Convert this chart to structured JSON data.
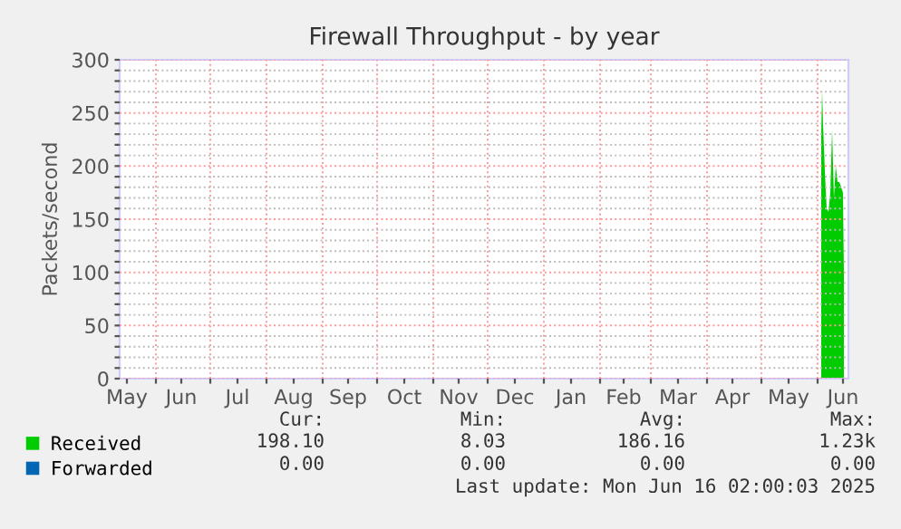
{
  "chart_data": {
    "type": "area",
    "title": "Firewall Throughput - by year",
    "ylabel": "Packets/second",
    "x": [
      "2025-06-03",
      "2025-06-03T12:00",
      "2025-06-04",
      "2025-06-05",
      "2025-06-06",
      "2025-06-07",
      "2025-06-08",
      "2025-06-09",
      "2025-06-10",
      "2025-06-11",
      "2025-06-12",
      "2025-06-13",
      "2025-06-14",
      "2025-06-15",
      "2025-06-15T12:00"
    ],
    "series": [
      {
        "name": "Received",
        "color": "#00cc00",
        "values": [
          230,
          271,
          240,
          195,
          160,
          157,
          175,
          234,
          170,
          200,
          185,
          185,
          180,
          175,
          100
        ]
      },
      {
        "name": "Forwarded",
        "color": "#0066b3",
        "values": [
          null,
          null,
          null,
          null,
          null,
          null,
          null,
          null,
          null,
          null,
          null,
          null,
          null,
          null,
          null
        ]
      }
    ],
    "xlim": [
      "2024-05-12",
      "2025-06-18"
    ],
    "xticks": [
      {
        "value": "2024-05-16",
        "label": "May"
      },
      {
        "value": "2024-06-01",
        "label": null
      },
      {
        "value": "2024-06-15",
        "label": "Jun"
      },
      {
        "value": "2024-07-01",
        "label": null
      },
      {
        "value": "2024-07-16",
        "label": "Jul"
      },
      {
        "value": "2024-08-01",
        "label": null
      },
      {
        "value": "2024-08-16",
        "label": "Aug"
      },
      {
        "value": "2024-09-01",
        "label": null
      },
      {
        "value": "2024-09-15",
        "label": "Sep"
      },
      {
        "value": "2024-10-01",
        "label": null
      },
      {
        "value": "2024-10-16",
        "label": "Oct"
      },
      {
        "value": "2024-11-01",
        "label": null
      },
      {
        "value": "2024-11-15",
        "label": "Nov"
      },
      {
        "value": "2024-12-01",
        "label": null
      },
      {
        "value": "2024-12-16",
        "label": "Dec"
      },
      {
        "value": "2025-01-01",
        "label": null
      },
      {
        "value": "2025-01-16",
        "label": "Jan"
      },
      {
        "value": "2025-02-01",
        "label": null
      },
      {
        "value": "2025-02-14",
        "label": "Feb"
      },
      {
        "value": "2025-03-01",
        "label": null
      },
      {
        "value": "2025-03-16",
        "label": "Mar"
      },
      {
        "value": "2025-04-01",
        "label": null
      },
      {
        "value": "2025-04-15",
        "label": "Apr"
      },
      {
        "value": "2025-05-01",
        "label": null
      },
      {
        "value": "2025-05-16",
        "label": "May"
      },
      {
        "value": "2025-06-01",
        "label": null
      },
      {
        "value": "2025-06-15",
        "label": "Jun"
      }
    ],
    "ylim": [
      0,
      300
    ],
    "yticks": [
      0,
      {
        "value": 10,
        "label": null
      },
      {
        "value": 20,
        "label": null
      },
      {
        "value": 30,
        "label": null
      },
      {
        "value": 40,
        "label": null
      },
      50,
      {
        "value": 60,
        "label": null
      },
      {
        "value": 70,
        "label": null
      },
      {
        "value": 80,
        "label": null
      },
      {
        "value": 90,
        "label": null
      },
      100,
      {
        "value": 110,
        "label": null
      },
      {
        "value": 120,
        "label": null
      },
      {
        "value": 130,
        "label": null
      },
      {
        "value": 140,
        "label": null
      },
      150,
      {
        "value": 160,
        "label": null
      },
      {
        "value": 170,
        "label": null
      },
      {
        "value": 180,
        "label": null
      },
      {
        "value": 190,
        "label": null
      },
      200,
      {
        "value": 210,
        "label": null
      },
      {
        "value": 220,
        "label": null
      },
      {
        "value": 230,
        "label": null
      },
      {
        "value": 240,
        "label": null
      },
      250,
      {
        "value": 260,
        "label": null
      },
      {
        "value": 270,
        "label": null
      },
      {
        "value": 280,
        "label": null
      },
      {
        "value": 290,
        "label": null
      },
      300
    ],
    "grid": true,
    "legend": "bottom left",
    "annotations": [
      "Cur:",
      "Min:",
      "Avg:",
      "Max:",
      "198.10",
      "8.03",
      "186.16",
      "1.23k",
      "0.00",
      "0.00",
      "0.00",
      "0.00",
      "Last update: Mon Jun 16 02:00:03 2025"
    ]
  }
}
